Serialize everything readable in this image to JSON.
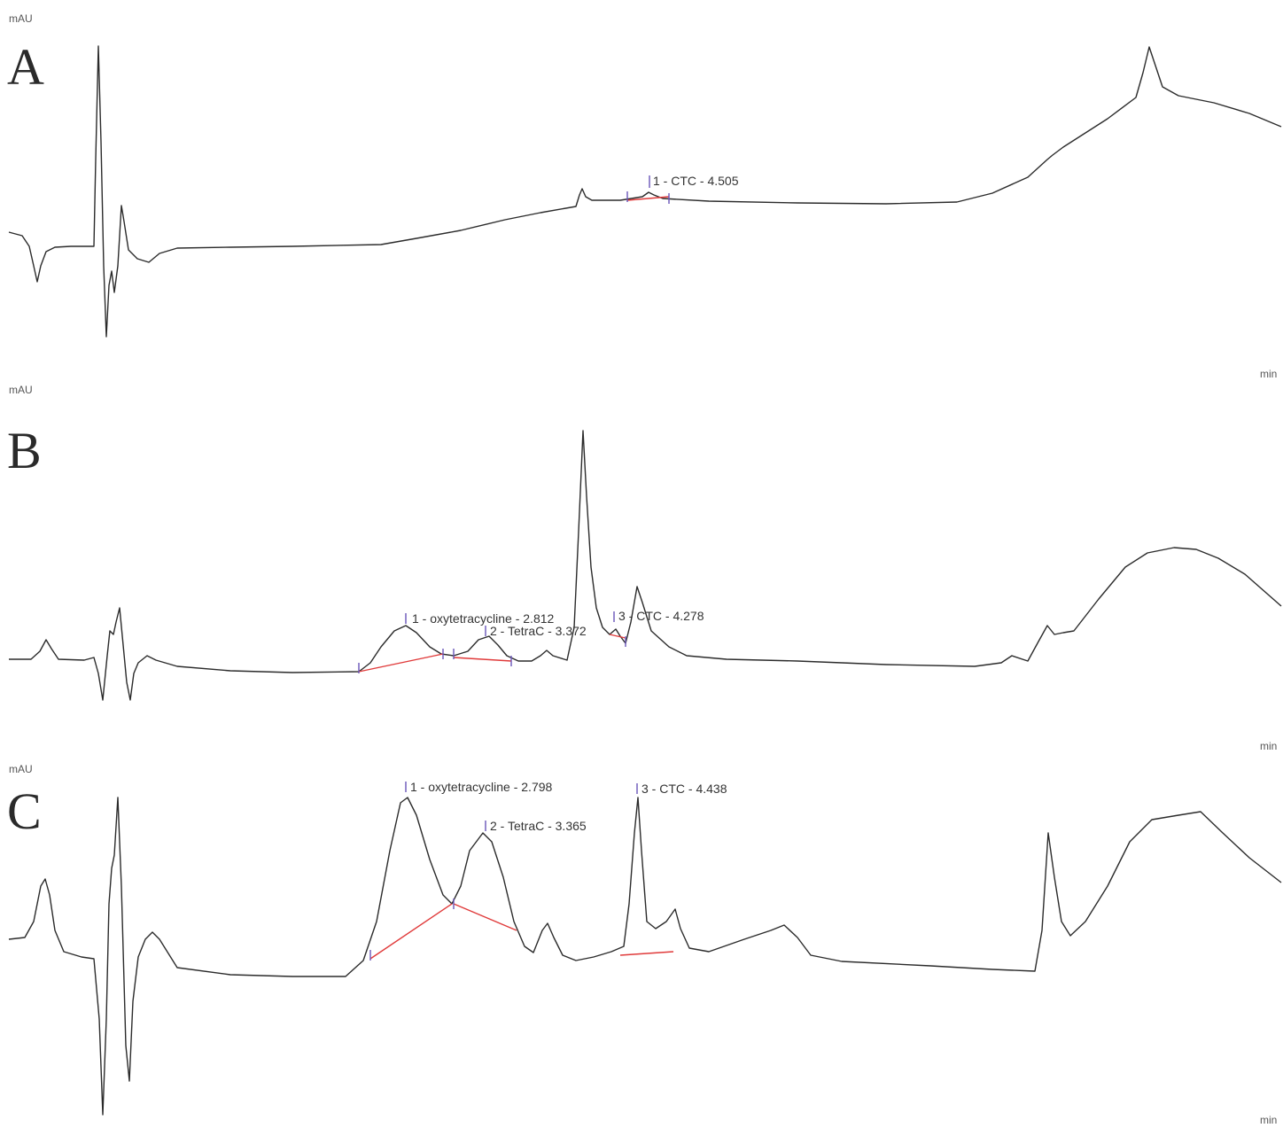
{
  "chart_data": [
    {
      "type": "line",
      "panel": "A",
      "ylabel": "mAU",
      "xlabel": "min",
      "peaks": [
        {
          "id": "1",
          "name": "CTC",
          "rt": 4.505,
          "label": "1 - CTC - 4.505"
        }
      ]
    },
    {
      "type": "line",
      "panel": "B",
      "ylabel": "mAU",
      "xlabel": "min",
      "peaks": [
        {
          "id": "1",
          "name": "oxytetracycline",
          "rt": 2.812,
          "label": "1 - oxytetracycline - 2.812"
        },
        {
          "id": "2",
          "name": "TetraC",
          "rt": 3.372,
          "label": "2 - TetraC - 3.372"
        },
        {
          "id": "3",
          "name": "CTC",
          "rt": 4.278,
          "label": "3 - CTC - 4.278"
        }
      ]
    },
    {
      "type": "line",
      "panel": "C",
      "ylabel": "mAU",
      "xlabel": "min",
      "peaks": [
        {
          "id": "1",
          "name": "oxytetracycline",
          "rt": 2.798,
          "label": "1 - oxytetracycline - 2.798"
        },
        {
          "id": "2",
          "name": "TetraC",
          "rt": 3.365,
          "label": "2 - TetraC - 3.365"
        },
        {
          "id": "3",
          "name": "CTC",
          "rt": 4.438,
          "label": "3 - CTC - 4.438"
        }
      ]
    }
  ]
}
